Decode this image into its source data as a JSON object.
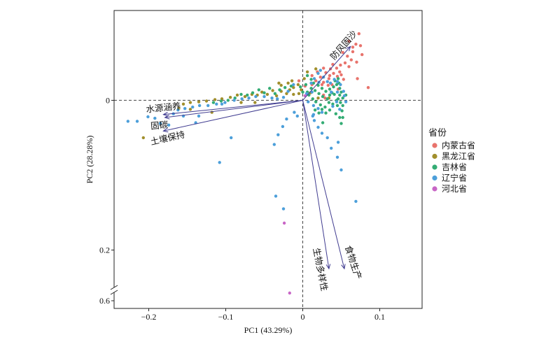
{
  "chart_data": {
    "type": "scatter",
    "xlabel": "PC1 (43.29%)",
    "ylabel": "PC2 (28.28%)",
    "xlim": [
      -0.245,
      0.155
    ],
    "ylim": [
      -0.12,
      0.655
    ],
    "y_reversed": true,
    "y_break": [
      0.25,
      0.54
    ],
    "x_ticks": [
      {
        "value": -0.2,
        "label": "−0.2"
      },
      {
        "value": -0.1,
        "label": "−0.1"
      },
      {
        "value": 0,
        "label": "0"
      },
      {
        "value": 0.1,
        "label": "0.1"
      }
    ],
    "y_ticks": [
      {
        "value": 0,
        "label": "0"
      },
      {
        "value": 0.2,
        "label": "0.2"
      },
      {
        "value": 0.6,
        "label": "0.6"
      }
    ],
    "reference_lines": {
      "x": 0,
      "y": 0,
      "dashed": true
    },
    "grid": false,
    "legend_title": "省份",
    "legend_position": "right",
    "arrow_color": "#403C90",
    "series": [
      {
        "name": "内蒙古省",
        "color": "#E8736C",
        "points": [
          [
            0.073,
            -0.089
          ],
          [
            0.069,
            -0.075
          ],
          [
            0.075,
            -0.073
          ],
          [
            0.065,
            -0.071
          ],
          [
            0.06,
            -0.079
          ],
          [
            0.052,
            -0.064
          ],
          [
            0.058,
            -0.059
          ],
          [
            0.065,
            -0.065
          ],
          [
            0.055,
            -0.05
          ],
          [
            0.06,
            -0.045
          ],
          [
            0.07,
            -0.051
          ],
          [
            0.039,
            -0.048
          ],
          [
            0.044,
            -0.043
          ],
          [
            0.048,
            -0.038
          ],
          [
            0.027,
            -0.043
          ],
          [
            0.03,
            -0.037
          ],
          [
            0.035,
            -0.033
          ],
          [
            0.019,
            -0.038
          ],
          [
            0.023,
            -0.031
          ],
          [
            0.012,
            -0.033
          ],
          [
            0.085,
            -0.017
          ],
          [
            0.071,
            -0.029
          ],
          [
            0.027,
            -0.024
          ],
          [
            0.034,
            -0.029
          ],
          [
            0.04,
            -0.036
          ],
          [
            0.045,
            -0.032
          ],
          [
            0.038,
            -0.021
          ],
          [
            0.033,
            -0.02
          ],
          [
            0.025,
            -0.021
          ],
          [
            0.05,
            -0.034
          ],
          [
            0.053,
            -0.028
          ],
          [
            0.049,
            -0.047
          ],
          [
            0.036,
            -0.042
          ],
          [
            0.077,
            -0.061
          ],
          [
            0.063,
            -0.054
          ],
          [
            0.012,
            -0.021
          ],
          [
            0.017,
            -0.026
          ],
          [
            -0.005,
            -0.026
          ],
          [
            0.003,
            -0.019
          ],
          [
            0.046,
            -0.015
          ],
          [
            0.029,
            -0.003
          ],
          [
            0.027,
            -0.007
          ]
        ]
      },
      {
        "name": "黑龙江省",
        "color": "#A18F2C",
        "points": [
          [
            -0.017,
            -0.014
          ],
          [
            -0.012,
            -0.008
          ],
          [
            -0.021,
            -0.009
          ],
          [
            -0.028,
            -0.012
          ],
          [
            -0.034,
            -0.006
          ],
          [
            -0.039,
            -0.013
          ],
          [
            -0.046,
            -0.008
          ],
          [
            -0.053,
            -0.011
          ],
          [
            -0.059,
            -0.007
          ],
          [
            -0.066,
            -0.008
          ],
          [
            -0.075,
            -0.005
          ],
          [
            -0.085,
            -0.007
          ],
          [
            -0.094,
            -0.004
          ],
          [
            -0.105,
            -0.002
          ],
          [
            -0.114,
            -0.001
          ],
          [
            -0.125,
            0.001
          ],
          [
            -0.135,
            0.002
          ],
          [
            -0.146,
            0.003
          ],
          [
            -0.155,
            0.005
          ],
          [
            -0.031,
            -0.023
          ],
          [
            -0.028,
            -0.02
          ],
          [
            -0.014,
            -0.026
          ],
          [
            -0.019,
            -0.023
          ],
          [
            -0.002,
            -0.014
          ],
          [
            -0.005,
            -0.009
          ],
          [
            -0.006,
            -0.021
          ],
          [
            -0.012,
            -0.017
          ],
          [
            0.006,
            -0.038
          ],
          [
            0.017,
            -0.042
          ],
          [
            0.02,
            -0.003
          ],
          [
            -0.207,
            0.05
          ],
          [
            -0.161,
            0.011
          ],
          [
            -0.146,
            0.012
          ],
          [
            -0.118,
            0.016
          ],
          [
            0.002,
            -0.029
          ],
          [
            0.034,
            -0.003
          ],
          [
            0.01,
            -0.01
          ],
          [
            -0.062,
            0.003
          ],
          [
            -0.08,
            0.003
          ]
        ]
      },
      {
        "name": "吉林省",
        "color": "#33AC74",
        "points": [
          [
            0.006,
            -0.033
          ],
          [
            0.011,
            -0.028
          ],
          [
            0.014,
            -0.023
          ],
          [
            0.02,
            -0.02
          ],
          [
            0.025,
            -0.016
          ],
          [
            0.03,
            -0.012
          ],
          [
            0.035,
            -0.015
          ],
          [
            0.04,
            -0.018
          ],
          [
            0.044,
            -0.021
          ],
          [
            0.047,
            -0.023
          ],
          [
            0.048,
            -0.016
          ],
          [
            0.05,
            -0.011
          ],
          [
            0.048,
            -0.007
          ],
          [
            0.046,
            -0.002
          ],
          [
            0.041,
            -0.008
          ],
          [
            0.035,
            -0.007
          ],
          [
            0.032,
            -0.002
          ],
          [
            0.026,
            -0.005
          ],
          [
            0.021,
            -0.009
          ],
          [
            0.016,
            -0.013
          ],
          [
            0.011,
            -0.016
          ],
          [
            0.006,
            -0.011
          ],
          [
            0.004,
            -0.021
          ],
          [
            0.008,
            -0.007
          ],
          [
            0.013,
            -0.002
          ],
          [
            0.017,
            0.002
          ],
          [
            0.023,
            0.006
          ],
          [
            0.029,
            0.009
          ],
          [
            0.035,
            0.013
          ],
          [
            0.043,
            0.018
          ],
          [
            0.048,
            0.023
          ],
          [
            0.051,
            0.014
          ],
          [
            0.052,
            0.007
          ],
          [
            0.049,
            0.003
          ],
          [
            0.045,
            0.007
          ],
          [
            0.039,
            0.005
          ],
          [
            0.034,
            0.003
          ],
          [
            0.03,
            0.017
          ],
          [
            0.025,
            0.012
          ],
          [
            0.021,
            0.017
          ],
          [
            0.016,
            0.013
          ],
          [
            0.026,
            0.03
          ],
          [
            0.05,
            0.031
          ],
          [
            0.052,
            0.023
          ],
          [
            0.052,
            -0.003
          ],
          [
            0.056,
            -0.007
          ],
          [
            -0.015,
            -0.019
          ],
          [
            -0.023,
            -0.017
          ],
          [
            -0.03,
            -0.014
          ],
          [
            -0.036,
            -0.009
          ],
          [
            -0.043,
            -0.016
          ],
          [
            -0.05,
            -0.01
          ],
          [
            -0.057,
            -0.014
          ],
          [
            -0.065,
            -0.01
          ],
          [
            -0.072,
            -0.007
          ],
          [
            -0.08,
            -0.008
          ],
          [
            -0.088,
            -0.003
          ],
          [
            -0.097,
            0.0
          ],
          [
            -0.106,
            0.001
          ],
          [
            -0.116,
            0.003
          ],
          [
            -0.003,
            -0.018
          ],
          [
            0.0,
            -0.011
          ],
          [
            0.042,
            -0.026
          ],
          [
            0.046,
            -0.029
          ],
          [
            0.038,
            -0.01
          ],
          [
            0.044,
            0.0
          ]
        ]
      },
      {
        "name": "辽宁省",
        "color": "#4C9FDA",
        "points": [
          [
            0.011,
            -0.023
          ],
          [
            0.015,
            -0.029
          ],
          [
            0.02,
            -0.036
          ],
          [
            0.023,
            -0.04
          ],
          [
            0.027,
            -0.031
          ],
          [
            0.032,
            -0.025
          ],
          [
            0.036,
            -0.023
          ],
          [
            0.041,
            -0.028
          ],
          [
            0.045,
            -0.025
          ],
          [
            0.049,
            -0.021
          ],
          [
            0.053,
            -0.012
          ],
          [
            0.045,
            -0.011
          ],
          [
            0.037,
            -0.011
          ],
          [
            0.021,
            -0.024
          ],
          [
            0.012,
            -0.011
          ],
          [
            0.005,
            -0.009
          ],
          [
            0.007,
            0.002
          ],
          [
            0.014,
            0.007
          ],
          [
            0.02,
            0.011
          ],
          [
            0.025,
            0.016
          ],
          [
            0.015,
            0.027
          ],
          [
            0.02,
            0.036
          ],
          [
            0.014,
            0.019
          ],
          [
            0.039,
            0.008
          ],
          [
            0.044,
            0.002
          ],
          [
            0.048,
            0.012
          ],
          [
            0.054,
            -0.006
          ],
          [
            -0.012,
            -0.021
          ],
          [
            -0.019,
            -0.012
          ],
          [
            -0.025,
            -0.004
          ],
          [
            -0.033,
            -0.002
          ],
          [
            -0.04,
            -0.003
          ],
          [
            -0.05,
            -0.005
          ],
          [
            -0.061,
            -0.005
          ],
          [
            -0.07,
            -0.003
          ],
          [
            -0.079,
            -0.002
          ],
          [
            -0.089,
            0.0
          ],
          [
            -0.101,
            0.003
          ],
          [
            -0.112,
            0.005
          ],
          [
            -0.123,
            0.007
          ],
          [
            -0.134,
            0.007
          ],
          [
            -0.143,
            0.009
          ],
          [
            -0.153,
            0.011
          ],
          [
            -0.162,
            0.013
          ],
          [
            -0.227,
            0.028
          ],
          [
            -0.215,
            0.028
          ],
          [
            -0.201,
            0.022
          ],
          [
            -0.192,
            0.024
          ],
          [
            -0.185,
            0.031
          ],
          [
            -0.174,
            0.033
          ],
          [
            -0.168,
            0.018
          ],
          [
            -0.155,
            0.021
          ],
          [
            -0.135,
            0.021
          ],
          [
            -0.105,
            0.005
          ],
          [
            -0.093,
            0.05
          ],
          [
            -0.108,
            0.083
          ],
          [
            -0.139,
            0.03
          ],
          [
            -0.035,
            0.128
          ],
          [
            -0.025,
            0.145
          ],
          [
            -0.032,
            0.046
          ],
          [
            -0.037,
            0.059
          ],
          [
            -0.021,
            0.025
          ],
          [
            -0.026,
            0.035
          ],
          [
            -0.011,
            0.016
          ],
          [
            -0.007,
            0.021
          ],
          [
            0.013,
            0.021
          ],
          [
            0.025,
            0.044
          ],
          [
            0.032,
            0.05
          ],
          [
            0.046,
            0.056
          ],
          [
            0.05,
            0.093
          ],
          [
            0.069,
            0.135
          ],
          [
            0.045,
            0.076
          ],
          [
            0.056,
            0.002
          ],
          [
            0.037,
            0.064
          ]
        ]
      },
      {
        "name": "河北省",
        "color": "#C866C6",
        "points": [
          [
            -0.024,
            0.164
          ],
          [
            -0.017,
            0.545
          ],
          [
            0.003,
            -0.006
          ]
        ]
      }
    ],
    "loadings": [
      {
        "label": "防风固沙",
        "x": 0.062,
        "y": -0.072
      },
      {
        "label": "水源涵养",
        "x": -0.181,
        "y": 0.019
      },
      {
        "label": "固碳",
        "x": -0.179,
        "y": 0.023
      },
      {
        "label": "土壤保持",
        "x": -0.181,
        "y": 0.041
      },
      {
        "label": "生物多样性",
        "x": 0.034,
        "y": 0.225
      },
      {
        "label": "食物生产",
        "x": 0.054,
        "y": 0.225
      }
    ]
  }
}
